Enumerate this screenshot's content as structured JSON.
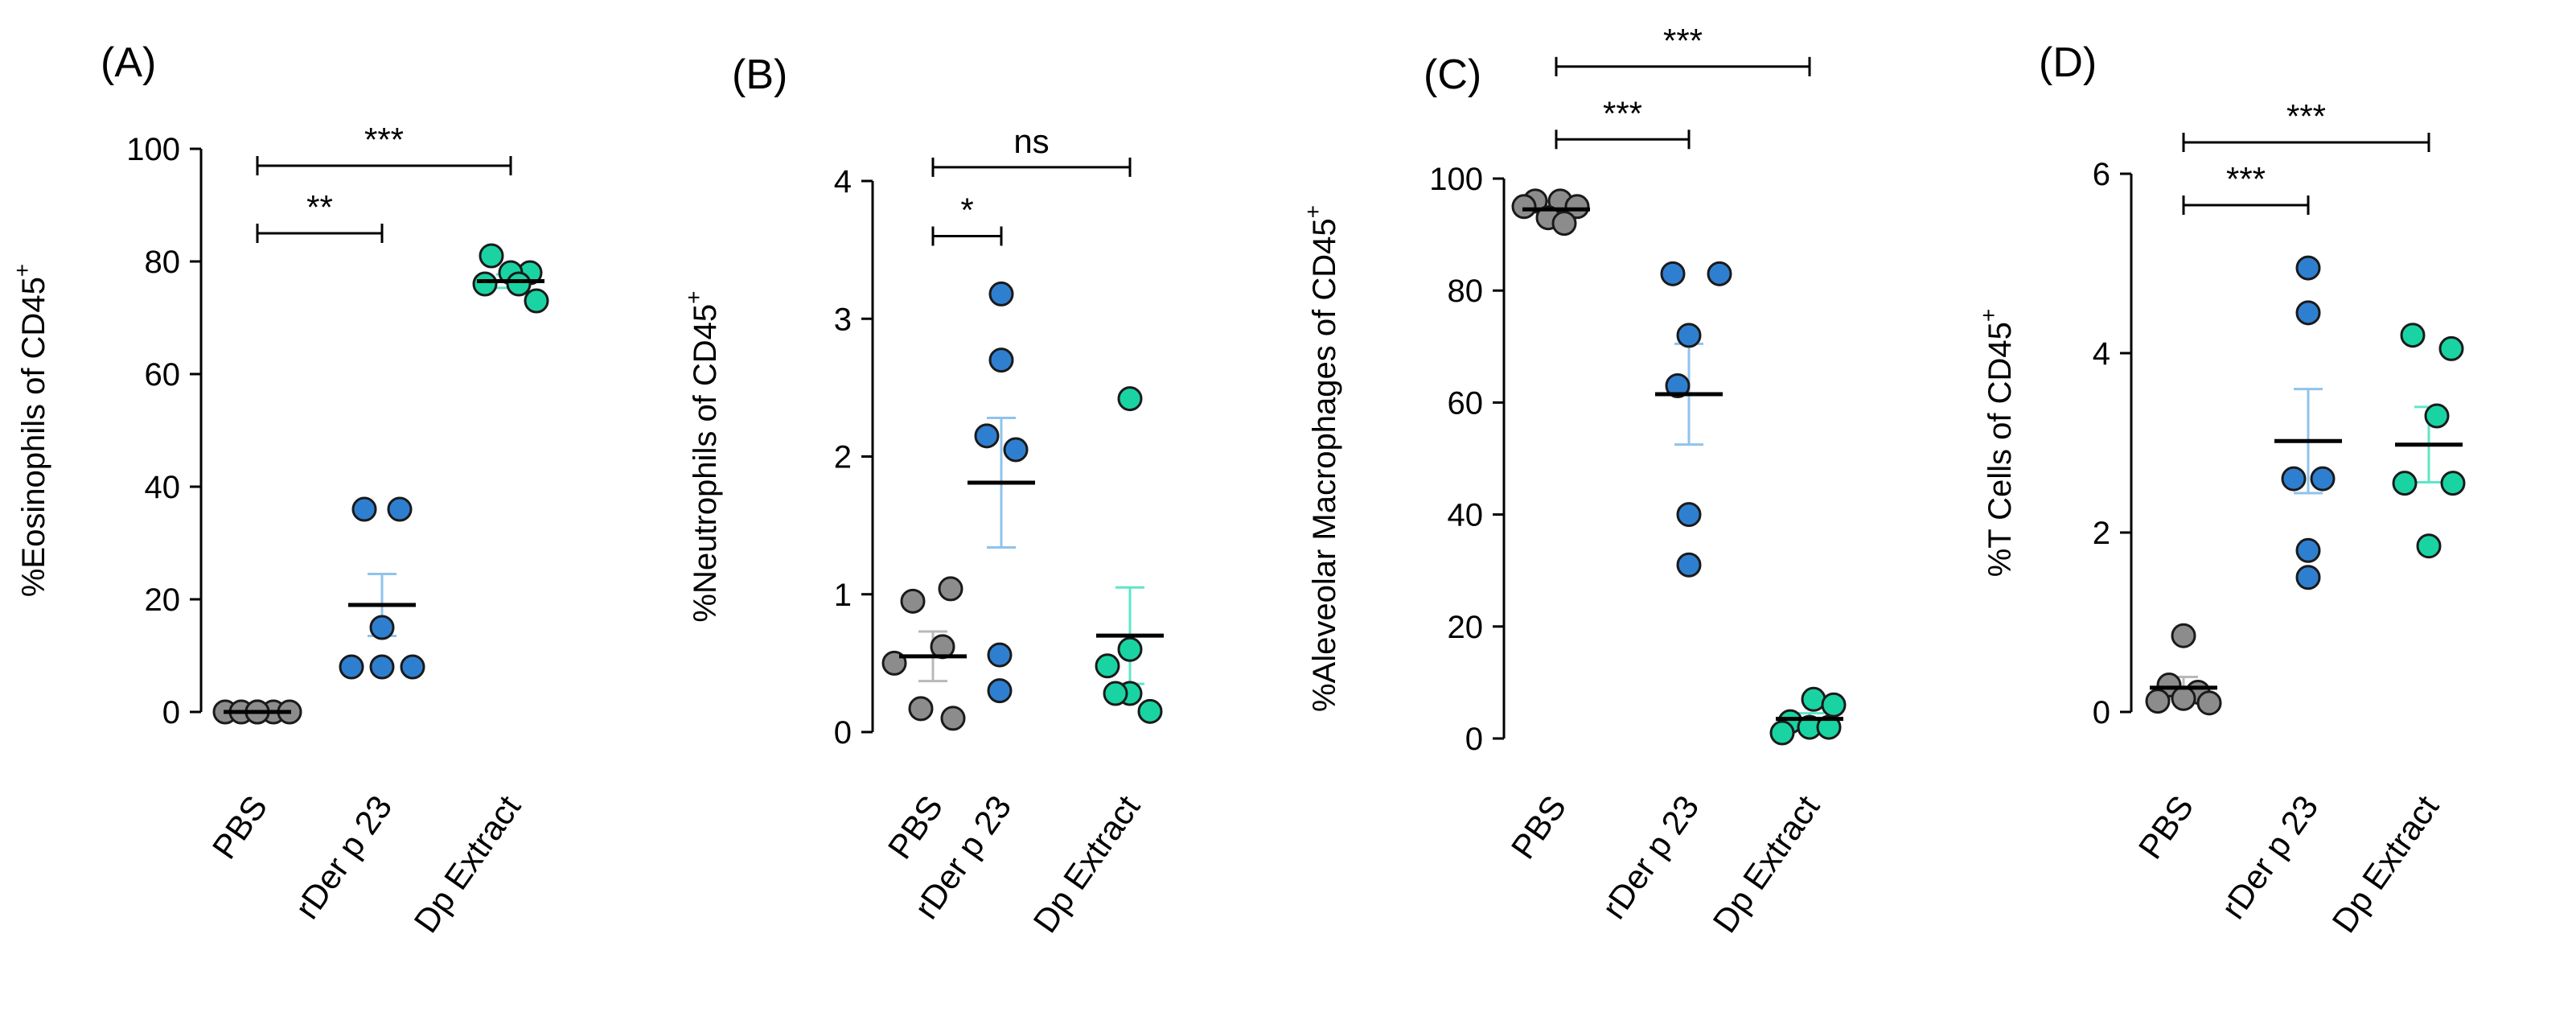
{
  "colors": {
    "PBS": "#8c8c8c",
    "rDer p 23": "#2f7fd0",
    "Dp Extract": "#19d4a2",
    "err_PBS": "#b8b8b8",
    "err_rDer p 23": "#8fc3ec",
    "err_Dp Extract": "#5fe6c7",
    "axis": "#000000",
    "mean": "#000000"
  },
  "chart_data": [
    {
      "type": "scatter",
      "panel": "(A)",
      "ylabel": "%Eosinophils of CD45",
      "ylabel_sup": "+",
      "categories": [
        "PBS",
        "rDer p 23",
        "Dp Extract"
      ],
      "ylim": [
        0,
        100
      ],
      "yticks": [
        0,
        20,
        40,
        60,
        80,
        100
      ],
      "series": [
        {
          "name": "PBS",
          "values": [
            0,
            0,
            0,
            0,
            0,
            0
          ],
          "mean": 0,
          "sem": 0
        },
        {
          "name": "rDer p 23",
          "values": [
            36,
            36,
            8,
            8,
            8,
            15
          ],
          "mean": 19,
          "sem": 5.5
        },
        {
          "name": "Dp Extract",
          "values": [
            81,
            78,
            78,
            76,
            76,
            73
          ],
          "mean": 76.5,
          "sem": 1.2
        }
      ],
      "significance": [
        {
          "from": 0,
          "to": 1,
          "label": "**",
          "y": 85
        },
        {
          "from": 0,
          "to": 2,
          "label": "***",
          "y": 97
        }
      ]
    },
    {
      "type": "scatter",
      "panel": "(B)",
      "ylabel": "%Neutrophils of CD45",
      "ylabel_sup": "+",
      "categories": [
        "PBS",
        "rDer p 23",
        "Dp Extract"
      ],
      "ylim": [
        0,
        4
      ],
      "yticks": [
        0,
        1,
        2,
        3,
        4
      ],
      "series": [
        {
          "name": "PBS",
          "values": [
            1.04,
            0.95,
            0.62,
            0.5,
            0.17,
            0.1
          ],
          "mean": 0.55,
          "sem": 0.18
        },
        {
          "name": "rDer p 23",
          "values": [
            3.18,
            2.7,
            2.15,
            2.05,
            0.56,
            0.3
          ],
          "mean": 1.81,
          "sem": 0.47
        },
        {
          "name": "Dp Extract",
          "values": [
            2.42,
            0.6,
            0.48,
            0.28,
            0.28,
            0.15
          ],
          "mean": 0.7,
          "sem": 0.35
        }
      ],
      "significance": [
        {
          "from": 0,
          "to": 1,
          "label": "*",
          "y": 3.6
        },
        {
          "from": 0,
          "to": 2,
          "label": "ns",
          "y": 4.1
        }
      ]
    },
    {
      "type": "scatter",
      "panel": "(C)",
      "ylabel": "%Aleveolar Macrophages of CD45",
      "ylabel_sup": "+",
      "categories": [
        "PBS",
        "rDer p 23",
        "Dp Extract"
      ],
      "ylim": [
        0,
        100
      ],
      "yticks": [
        0,
        20,
        40,
        60,
        80,
        100
      ],
      "series": [
        {
          "name": "PBS",
          "values": [
            96,
            96,
            95,
            95,
            93,
            92
          ],
          "mean": 94.5,
          "sem": 0.6
        },
        {
          "name": "rDer p 23",
          "values": [
            83,
            83,
            72,
            63,
            40,
            31
          ],
          "mean": 61.5,
          "sem": 9
        },
        {
          "name": "Dp Extract",
          "values": [
            7,
            6,
            3,
            2,
            2,
            1
          ],
          "mean": 3.5,
          "sem": 1
        }
      ],
      "significance": [
        {
          "from": 0,
          "to": 1,
          "label": "***",
          "y": 107
        },
        {
          "from": 0,
          "to": 2,
          "label": "***",
          "y": 120
        }
      ]
    },
    {
      "type": "scatter",
      "panel": "(D)",
      "ylabel": "%T Cells of CD45",
      "ylabel_sup": "+",
      "categories": [
        "PBS",
        "rDer p 23",
        "Dp Extract"
      ],
      "ylim": [
        0,
        6
      ],
      "yticks": [
        0,
        2,
        4,
        6
      ],
      "series": [
        {
          "name": "PBS",
          "values": [
            0.85,
            0.3,
            0.22,
            0.15,
            0.12,
            0.1
          ],
          "mean": 0.27,
          "sem": 0.12
        },
        {
          "name": "rDer p 23",
          "values": [
            4.95,
            4.45,
            2.6,
            2.6,
            1.8,
            1.5
          ],
          "mean": 3.02,
          "sem": 0.58
        },
        {
          "name": "Dp Extract",
          "values": [
            4.2,
            4.05,
            3.3,
            2.55,
            2.55,
            1.85
          ],
          "mean": 2.98,
          "sem": 0.42
        }
      ],
      "significance": [
        {
          "from": 0,
          "to": 1,
          "label": "***",
          "y": 5.65
        },
        {
          "from": 0,
          "to": 2,
          "label": "***",
          "y": 6.35
        }
      ]
    }
  ]
}
